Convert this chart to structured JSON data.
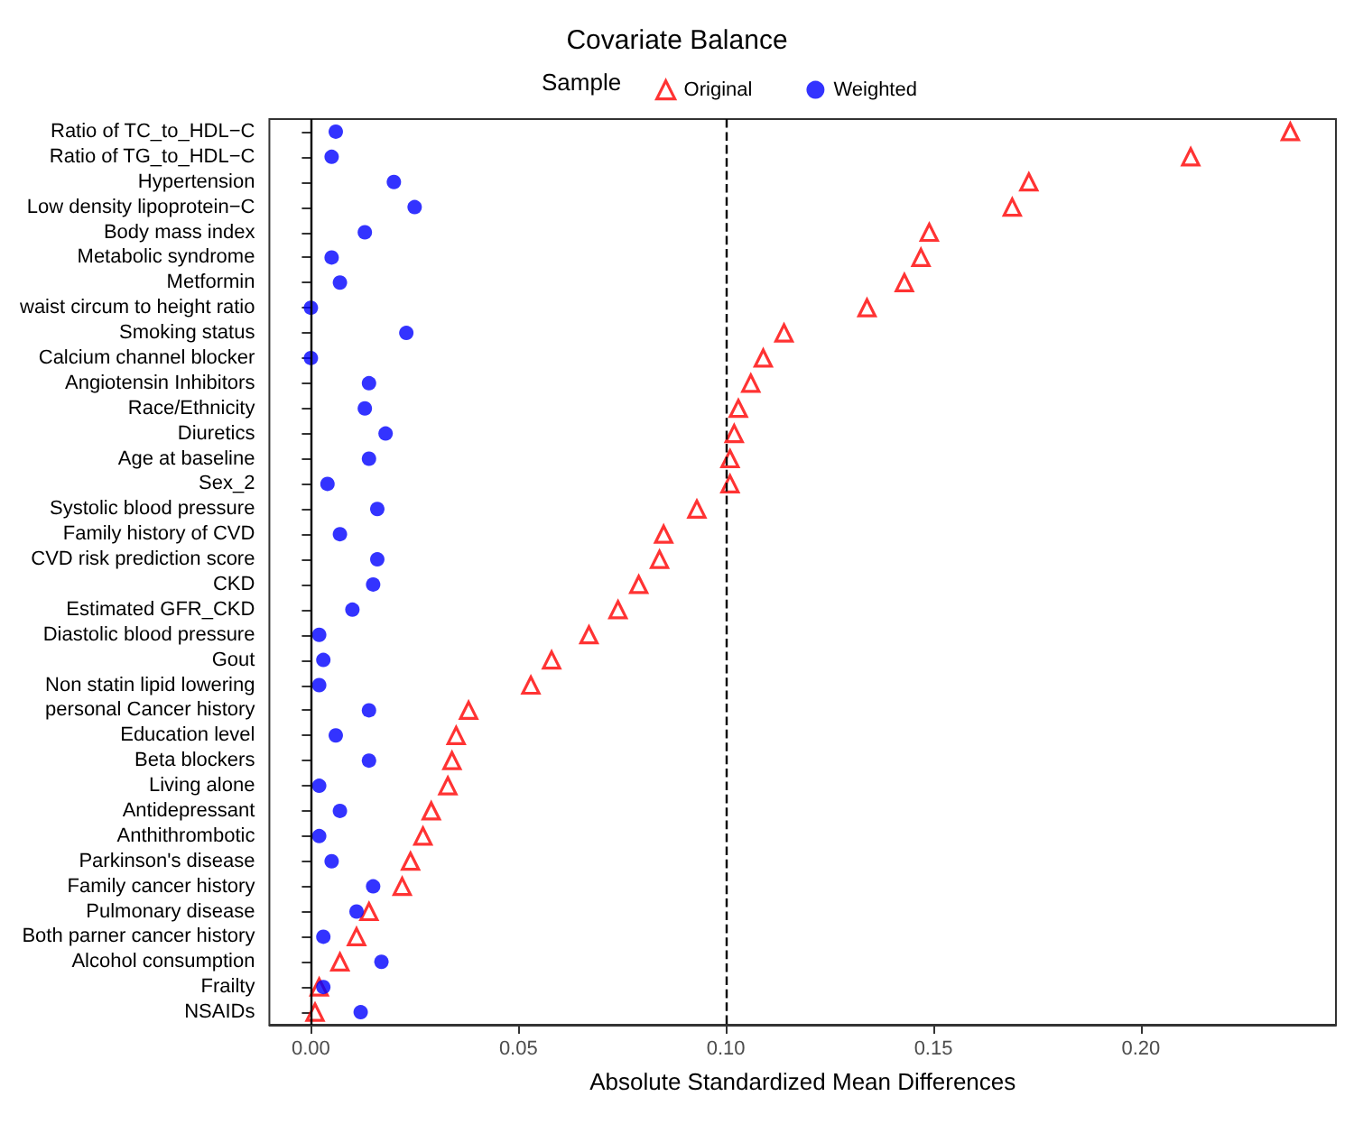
{
  "chart_data": {
    "type": "scatter",
    "orientation": "horizontal",
    "title": "Covariate Balance",
    "xlabel": "Absolute Standardized Mean Differences",
    "legend_title": "Sample",
    "legend": "top",
    "grid": false,
    "categories": [
      "Ratio of TC_to_HDL−C",
      "Ratio of TG_to_HDL−C",
      "Hypertension",
      "Low density lipoprotein−C",
      "Body mass index",
      "Metabolic syndrome",
      "Metformin",
      "waist circum to height ratio",
      "Smoking status",
      "Calcium channel blocker",
      "Angiotensin Inhibitors",
      "Race/Ethnicity",
      "Diuretics",
      "Age at baseline",
      "Sex_2",
      "Systolic blood pressure",
      "Family history of CVD",
      "CVD risk prediction score",
      "CKD",
      "Estimated GFR_CKD",
      "Diastolic blood pressure",
      "Gout",
      "Non statin lipid lowering",
      "personal Cancer history",
      "Education level",
      "Beta blockers",
      "Living alone",
      "Antidepressant",
      "Anthithrombotic",
      "Parkinson's disease",
      "Family cancer history",
      "Pulmonary disease",
      "Both parner cancer history",
      "Alcohol consumption",
      "Frailty",
      "NSAIDs"
    ],
    "series": [
      {
        "name": "Original",
        "color": "#ff0000",
        "marker": "triangle",
        "values": [
          0.236,
          0.212,
          0.173,
          0.169,
          0.149,
          0.147,
          0.143,
          0.134,
          0.114,
          0.109,
          0.106,
          0.103,
          0.102,
          0.101,
          0.101,
          0.093,
          0.085,
          0.084,
          0.079,
          0.074,
          0.067,
          0.058,
          0.053,
          0.038,
          0.035,
          0.034,
          0.033,
          0.029,
          0.027,
          0.024,
          0.022,
          0.014,
          0.011,
          0.007,
          0.002,
          0.001
        ]
      },
      {
        "name": "Weighted",
        "color": "#0000ff",
        "marker": "circle",
        "values": [
          0.006,
          0.005,
          0.02,
          0.025,
          0.013,
          0.005,
          0.007,
          0.0,
          0.023,
          0.0,
          0.014,
          0.013,
          0.018,
          0.014,
          0.004,
          0.016,
          0.007,
          0.016,
          0.015,
          0.01,
          0.002,
          0.003,
          0.002,
          0.014,
          0.006,
          0.014,
          0.002,
          0.007,
          0.002,
          0.005,
          0.015,
          0.011,
          0.003,
          0.017,
          0.003,
          0.012
        ]
      }
    ],
    "xlim": [
      -0.01,
      0.247
    ],
    "xticks": [
      {
        "value": 0,
        "label": "0.00"
      },
      {
        "value": 0.05,
        "label": "0.05"
      },
      {
        "value": 0.1,
        "label": "0.10"
      },
      {
        "value": 0.15,
        "label": "0.15"
      },
      {
        "value": 0.2,
        "label": "0.20"
      }
    ],
    "ref_lines": [
      {
        "axis": "x",
        "value": 0,
        "color": "#000000",
        "line_style": "solid"
      },
      {
        "axis": "x",
        "value": 0.1,
        "color": "#000000",
        "line_style": "dashed"
      }
    ]
  }
}
